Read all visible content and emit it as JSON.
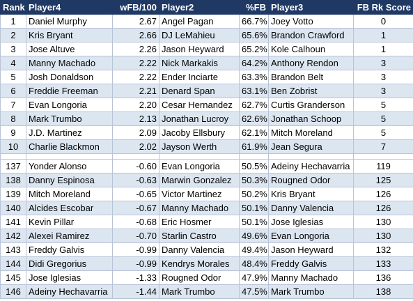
{
  "headers": {
    "rank": "Rank",
    "player4": "Player4",
    "wfb": "wFB/100",
    "player2": "Player2",
    "pct_fb": "%FB",
    "player3": "Player3",
    "score": "FB Rk Score"
  },
  "top_rows": [
    {
      "rank": "1",
      "player4": "Daniel Murphy",
      "wfb": "2.67",
      "player2": "Angel Pagan",
      "pct_fb": "66.7%",
      "player3": "Joey Votto",
      "score": "0"
    },
    {
      "rank": "2",
      "player4": "Kris Bryant",
      "wfb": "2.66",
      "player2": "DJ LeMahieu",
      "pct_fb": "65.6%",
      "player3": "Brandon Crawford",
      "score": "1"
    },
    {
      "rank": "3",
      "player4": "Jose Altuve",
      "wfb": "2.26",
      "player2": "Jason Heyward",
      "pct_fb": "65.2%",
      "player3": "Kole Calhoun",
      "score": "1"
    },
    {
      "rank": "4",
      "player4": "Manny Machado",
      "wfb": "2.22",
      "player2": "Nick Markakis",
      "pct_fb": "64.2%",
      "player3": "Anthony Rendon",
      "score": "3"
    },
    {
      "rank": "5",
      "player4": "Josh Donaldson",
      "wfb": "2.22",
      "player2": "Ender Inciarte",
      "pct_fb": "63.3%",
      "player3": "Brandon Belt",
      "score": "3"
    },
    {
      "rank": "6",
      "player4": "Freddie Freeman",
      "wfb": "2.21",
      "player2": "Denard Span",
      "pct_fb": "63.1%",
      "player3": "Ben Zobrist",
      "score": "3"
    },
    {
      "rank": "7",
      "player4": "Evan Longoria",
      "wfb": "2.20",
      "player2": "Cesar Hernandez",
      "pct_fb": "62.7%",
      "player3": "Curtis Granderson",
      "score": "5"
    },
    {
      "rank": "8",
      "player4": "Mark Trumbo",
      "wfb": "2.13",
      "player2": "Jonathan Lucroy",
      "pct_fb": "62.6%",
      "player3": "Jonathan Schoop",
      "score": "5"
    },
    {
      "rank": "9",
      "player4": "J.D. Martinez",
      "wfb": "2.09",
      "player2": "Jacoby Ellsbury",
      "pct_fb": "62.1%",
      "player3": "Mitch Moreland",
      "score": "5"
    },
    {
      "rank": "10",
      "player4": "Charlie Blackmon",
      "wfb": "2.02",
      "player2": "Jayson Werth",
      "pct_fb": "61.9%",
      "player3": "Jean Segura",
      "score": "7"
    }
  ],
  "bottom_rows": [
    {
      "rank": "137",
      "player4": "Yonder Alonso",
      "wfb": "-0.60",
      "player2": "Evan Longoria",
      "pct_fb": "50.5%",
      "player3": "Adeiny Hechavarria",
      "score": "119"
    },
    {
      "rank": "138",
      "player4": "Danny Espinosa",
      "wfb": "-0.63",
      "player2": "Marwin Gonzalez",
      "pct_fb": "50.3%",
      "player3": "Rougned Odor",
      "score": "125"
    },
    {
      "rank": "139",
      "player4": "Mitch Moreland",
      "wfb": "-0.65",
      "player2": "Victor Martinez",
      "pct_fb": "50.2%",
      "player3": "Kris Bryant",
      "score": "126"
    },
    {
      "rank": "140",
      "player4": "Alcides Escobar",
      "wfb": "-0.67",
      "player2": "Manny Machado",
      "pct_fb": "50.1%",
      "player3": "Danny Valencia",
      "score": "126"
    },
    {
      "rank": "141",
      "player4": "Kevin Pillar",
      "wfb": "-0.68",
      "player2": "Eric Hosmer",
      "pct_fb": "50.1%",
      "player3": "Jose Iglesias",
      "score": "130"
    },
    {
      "rank": "142",
      "player4": "Alexei Ramirez",
      "wfb": "-0.70",
      "player2": "Starlin Castro",
      "pct_fb": "49.6%",
      "player3": "Evan Longoria",
      "score": "130"
    },
    {
      "rank": "143",
      "player4": "Freddy Galvis",
      "wfb": "-0.99",
      "player2": "Danny Valencia",
      "pct_fb": "49.4%",
      "player3": "Jason Heyward",
      "score": "132"
    },
    {
      "rank": "144",
      "player4": "Didi Gregorius",
      "wfb": "-0.99",
      "player2": "Kendrys Morales",
      "pct_fb": "48.4%",
      "player3": "Freddy Galvis",
      "score": "133"
    },
    {
      "rank": "145",
      "player4": "Jose Iglesias",
      "wfb": "-1.33",
      "player2": "Rougned Odor",
      "pct_fb": "47.9%",
      "player3": "Manny Machado",
      "score": "136"
    },
    {
      "rank": "146",
      "player4": "Adeiny Hechavarria",
      "wfb": "-1.44",
      "player2": "Mark Trumbo",
      "pct_fb": "47.5%",
      "player3": "Mark Trumbo",
      "score": "138"
    }
  ]
}
